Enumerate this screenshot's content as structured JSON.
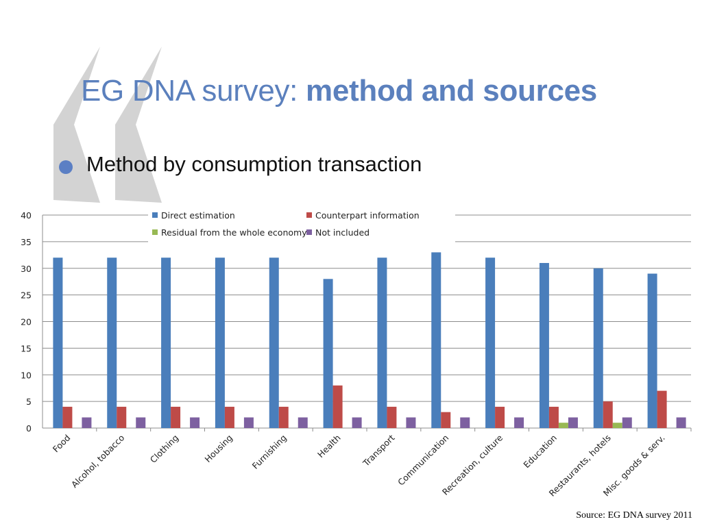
{
  "slide": {
    "title_regular": "EG DNA survey: ",
    "title_bold": "method and sources",
    "bullet": "Method by consumption transaction",
    "source": "Source: EG DNA survey 2011"
  },
  "colors": {
    "title": "#5b80bd",
    "bullet": "#5b7fc4",
    "decoration": "#d3d3d3"
  },
  "chart_data": {
    "type": "bar",
    "categories": [
      "Food",
      "Alcohol, tobacco",
      "Clothing",
      "Housing",
      "Furnishing",
      "Health",
      "Transport",
      "Communication",
      "Recreation, culture",
      "Education",
      "Restaurants, hotels",
      "Misc. goods & serv."
    ],
    "series": [
      {
        "name": "Direct estimation",
        "color": "#4a7ebb",
        "values": [
          32,
          32,
          32,
          32,
          32,
          28,
          32,
          33,
          32,
          31,
          30,
          29
        ]
      },
      {
        "name": "Counterpart information",
        "color": "#be4b48",
        "values": [
          4,
          4,
          4,
          4,
          4,
          8,
          4,
          3,
          4,
          4,
          5,
          7
        ]
      },
      {
        "name": "Residual from the whole economy",
        "color": "#98b954",
        "values": [
          0,
          0,
          0,
          0,
          0,
          0,
          0,
          0,
          0,
          1,
          1,
          0
        ]
      },
      {
        "name": "Not included",
        "color": "#7d60a0",
        "values": [
          2,
          2,
          2,
          2,
          2,
          2,
          2,
          2,
          2,
          2,
          2,
          2
        ]
      }
    ],
    "ylim": [
      0,
      40
    ],
    "yticks": [
      "0",
      "5",
      "10",
      "15",
      "20",
      "25",
      "30",
      "35",
      "40"
    ],
    "grid": true,
    "legend_position": "top"
  }
}
